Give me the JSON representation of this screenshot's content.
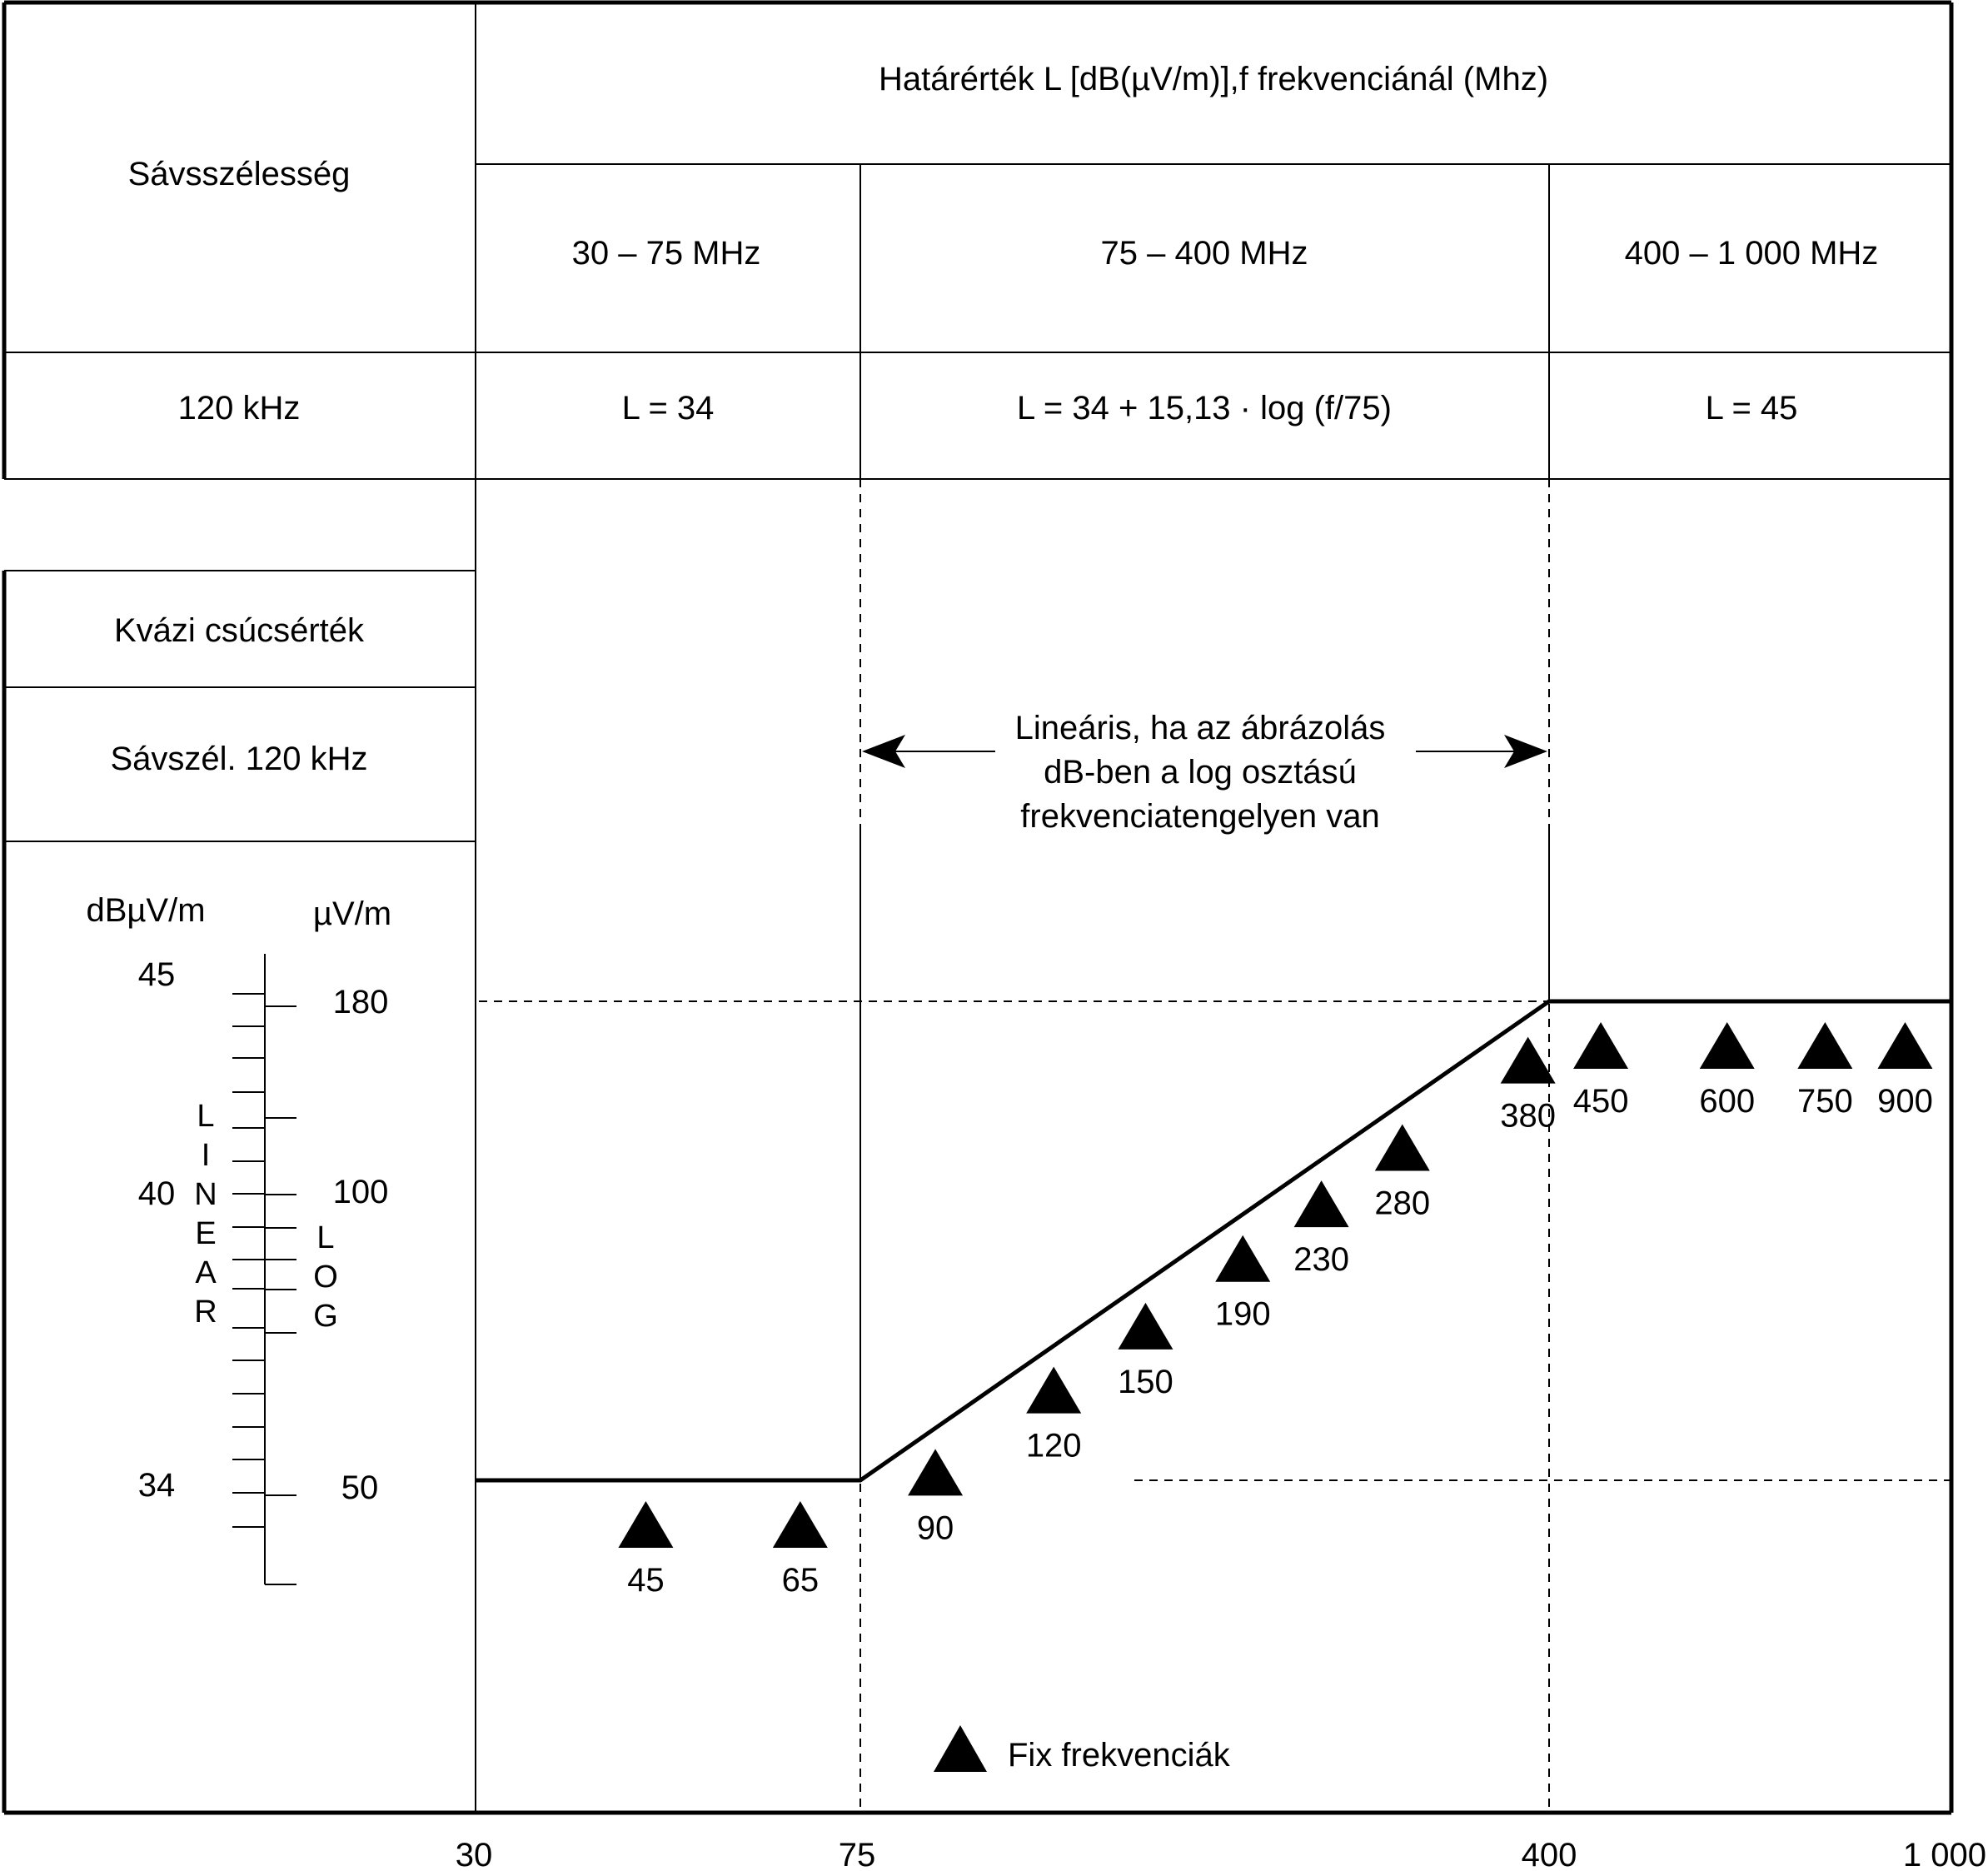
{
  "table": {
    "header_left": "Sávsszélesség",
    "header_main": "Határérték L [dB(µV/m)],f frekvenciánál (Mhz)",
    "bands": [
      {
        "range": "30 – 75 MHz",
        "formula": "L = 34"
      },
      {
        "range": "75 – 400 MHz",
        "formula": "L = 34 + 15,13 · log (f/75)"
      },
      {
        "range": "400 – 1 000 MHz",
        "formula": "L = 45"
      }
    ],
    "bandwidth": "120 kHz"
  },
  "legend_box": {
    "detector": "Kvázi csúcsérték",
    "bandwidth": "Sávszél. 120 kHz"
  },
  "scale": {
    "unit_db": "dBµV/m",
    "unit_uv": "µV/m",
    "db_ticks": [
      "45",
      "40",
      "34"
    ],
    "uv_ticks": [
      "180",
      "100",
      "50"
    ],
    "linear_letters": [
      "L",
      "I",
      "N",
      "E",
      "A",
      "R"
    ],
    "log_letters": [
      "L",
      "O",
      "G"
    ]
  },
  "chart_data": {
    "type": "line",
    "x_scale": "log",
    "x_ticks": [
      "30",
      "75",
      "400",
      "1 000"
    ],
    "xlim": [
      30,
      1000
    ],
    "ylim": [
      34,
      45
    ],
    "series": [
      {
        "x": [
          30,
          75,
          400,
          1000
        ],
        "y": [
          34,
          34,
          45,
          45
        ]
      }
    ],
    "reference_levels": [
      34,
      45
    ],
    "fixed_frequencies": [
      45,
      65,
      90,
      120,
      150,
      190,
      230,
      280,
      380,
      450,
      600,
      750,
      900
    ],
    "fixed_frequency_labels": [
      "45",
      "65",
      "90",
      "120",
      "150",
      "190",
      "230",
      "280",
      "380",
      "450",
      "600",
      "750",
      "900"
    ],
    "annotation": [
      "Lineáris, ha az ábrázolás",
      "dB-ben a log osztású",
      "frekvenciatengelyen van"
    ],
    "legend": {
      "marker": "triangle",
      "label": "Fix frekvenciák"
    }
  }
}
